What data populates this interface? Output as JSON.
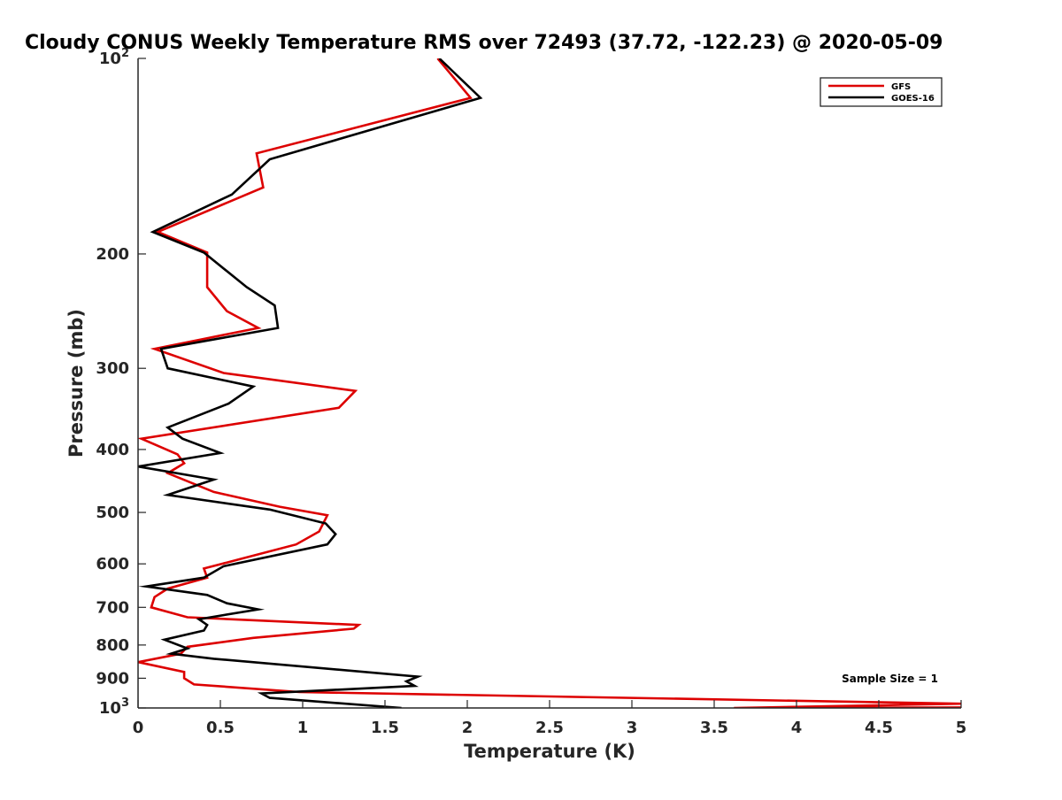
{
  "chart_data": {
    "type": "line",
    "title": "Cloudy CONUS Weekly Temperature RMS over 72493 (37.72, -122.23) @ 2020-05-09",
    "xlabel": "Temperature (K)",
    "ylabel": "Pressure (mb)",
    "xlim": [
      0,
      5
    ],
    "ylim": [
      100,
      1000
    ],
    "y_scale": "log",
    "y_reversed": true,
    "grid": false,
    "x_ticks": [
      "0",
      "0.5",
      "1",
      "1.5",
      "2",
      "2.5",
      "3",
      "3.5",
      "4",
      "4.5",
      "5"
    ],
    "y_ticks": [
      {
        "value": 100,
        "base": "10",
        "exp": "2"
      },
      {
        "value": 200,
        "label": "200"
      },
      {
        "value": 300,
        "label": "300"
      },
      {
        "value": 400,
        "label": "400"
      },
      {
        "value": 500,
        "label": "500"
      },
      {
        "value": 600,
        "label": "600"
      },
      {
        "value": 700,
        "label": "700"
      },
      {
        "value": 800,
        "label": "800"
      },
      {
        "value": 900,
        "label": "900"
      },
      {
        "value": 1000,
        "base": "10",
        "exp": "3"
      }
    ],
    "legend_position": "top-right",
    "annotation": "Sample Size = 1",
    "series": [
      {
        "name": "GFS",
        "color": "#dd0000",
        "points": [
          [
            1.82,
            100
          ],
          [
            2.02,
            115
          ],
          [
            0.72,
            140
          ],
          [
            0.76,
            158
          ],
          [
            0.12,
            185
          ],
          [
            0.42,
            199
          ],
          [
            0.42,
            225
          ],
          [
            0.54,
            245
          ],
          [
            0.73,
            260
          ],
          [
            0.1,
            280
          ],
          [
            0.52,
            305
          ],
          [
            1.32,
            325
          ],
          [
            1.22,
            345
          ],
          [
            0.02,
            385
          ],
          [
            0.24,
            407
          ],
          [
            0.28,
            420
          ],
          [
            0.18,
            435
          ],
          [
            0.46,
            465
          ],
          [
            0.86,
            490
          ],
          [
            1.15,
            505
          ],
          [
            1.1,
            535
          ],
          [
            0.96,
            560
          ],
          [
            0.62,
            590
          ],
          [
            0.4,
            610
          ],
          [
            0.42,
            630
          ],
          [
            0.18,
            655
          ],
          [
            0.1,
            675
          ],
          [
            0.08,
            700
          ],
          [
            0.3,
            725
          ],
          [
            1.34,
            745
          ],
          [
            1.31,
            755
          ],
          [
            0.7,
            780
          ],
          [
            0.3,
            805
          ],
          [
            0.26,
            825
          ],
          [
            0.0,
            850
          ],
          [
            0.28,
            880
          ],
          [
            0.28,
            900
          ],
          [
            0.34,
            920
          ],
          [
            0.98,
            945
          ],
          [
            5.0,
            985
          ],
          [
            3.62,
            1000
          ],
          [
            5.0,
            998
          ]
        ]
      },
      {
        "name": "GOES-16",
        "color": "#000000",
        "points": [
          [
            1.83,
            100
          ],
          [
            2.08,
            115
          ],
          [
            0.8,
            143
          ],
          [
            0.57,
            162
          ],
          [
            0.09,
            185
          ],
          [
            0.4,
            199
          ],
          [
            0.66,
            225
          ],
          [
            0.83,
            240
          ],
          [
            0.85,
            260
          ],
          [
            0.14,
            280
          ],
          [
            0.18,
            300
          ],
          [
            0.7,
            320
          ],
          [
            0.55,
            340
          ],
          [
            0.18,
            370
          ],
          [
            0.27,
            385
          ],
          [
            0.5,
            405
          ],
          [
            0.0,
            425
          ],
          [
            0.46,
            445
          ],
          [
            0.18,
            470
          ],
          [
            0.8,
            495
          ],
          [
            1.14,
            520
          ],
          [
            1.2,
            540
          ],
          [
            1.15,
            560
          ],
          [
            0.52,
            605
          ],
          [
            0.4,
            630
          ],
          [
            0.05,
            650
          ],
          [
            0.42,
            670
          ],
          [
            0.54,
            690
          ],
          [
            0.73,
            705
          ],
          [
            0.37,
            730
          ],
          [
            0.42,
            745
          ],
          [
            0.4,
            760
          ],
          [
            0.16,
            785
          ],
          [
            0.3,
            810
          ],
          [
            0.2,
            825
          ],
          [
            0.46,
            840
          ],
          [
            1.7,
            895
          ],
          [
            1.63,
            910
          ],
          [
            1.68,
            925
          ],
          [
            0.75,
            950
          ],
          [
            0.8,
            965
          ],
          [
            1.6,
            1000
          ]
        ]
      }
    ]
  }
}
